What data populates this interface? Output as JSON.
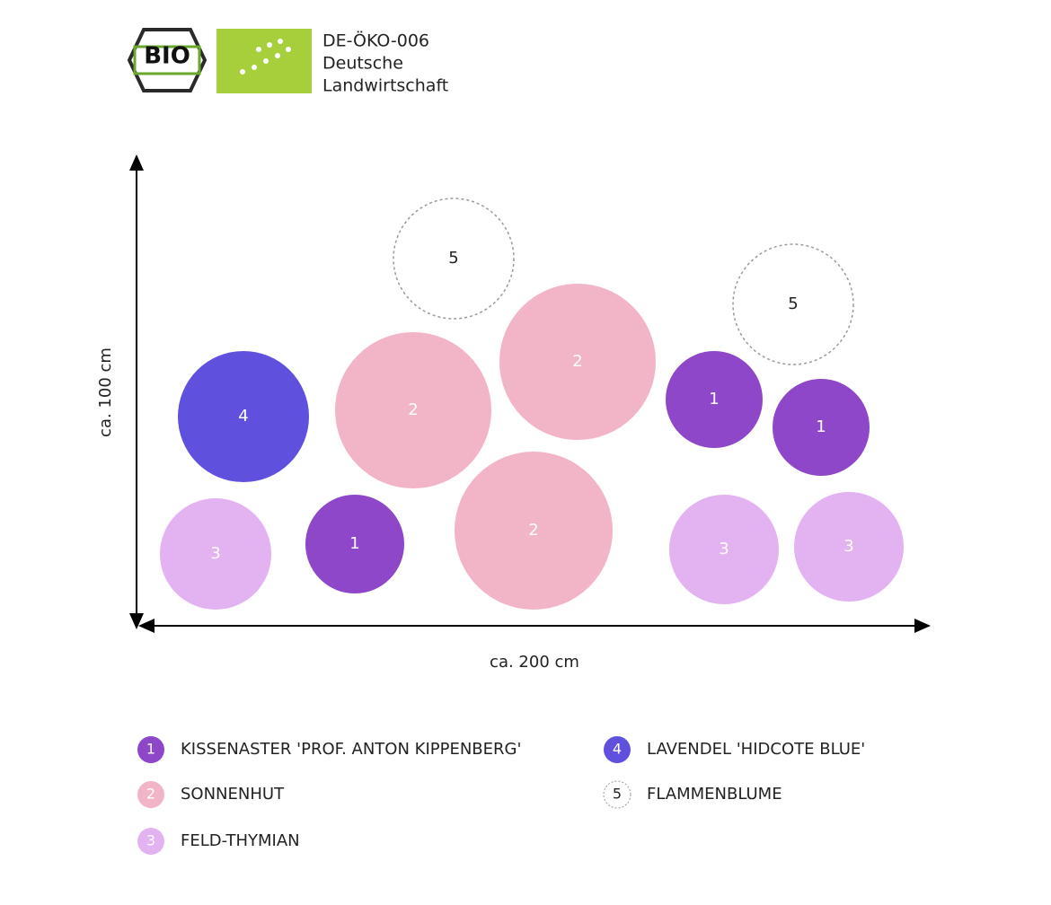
{
  "header": {
    "logo": "BIO",
    "cert_lines": [
      "DE-ÖKO-006",
      "Deutsche",
      "Landwirtschaft"
    ]
  },
  "axes": {
    "y_label": "ca. 100 cm",
    "x_label": "ca. 200 cm"
  },
  "nodes": [
    {
      "label": "5"
    },
    {
      "label": "5"
    },
    {
      "label": "4"
    },
    {
      "label": "2"
    },
    {
      "label": "2"
    },
    {
      "label": "1"
    },
    {
      "label": "1"
    },
    {
      "label": "3"
    },
    {
      "label": "1"
    },
    {
      "label": "2"
    },
    {
      "label": "3"
    },
    {
      "label": "3"
    }
  ],
  "legend": [
    {
      "number": "1",
      "name": "KISSENASTER 'PROF. ANTON KIPPENBERG'"
    },
    {
      "number": "2",
      "name": "SONNENHUT"
    },
    {
      "number": "3",
      "name": "FELD-THYMIAN"
    },
    {
      "number": "4",
      "name": "LAVENDEL 'HIDCOTE BLUE'"
    },
    {
      "number": "5",
      "name": "FLAMMENBLUME"
    }
  ]
}
